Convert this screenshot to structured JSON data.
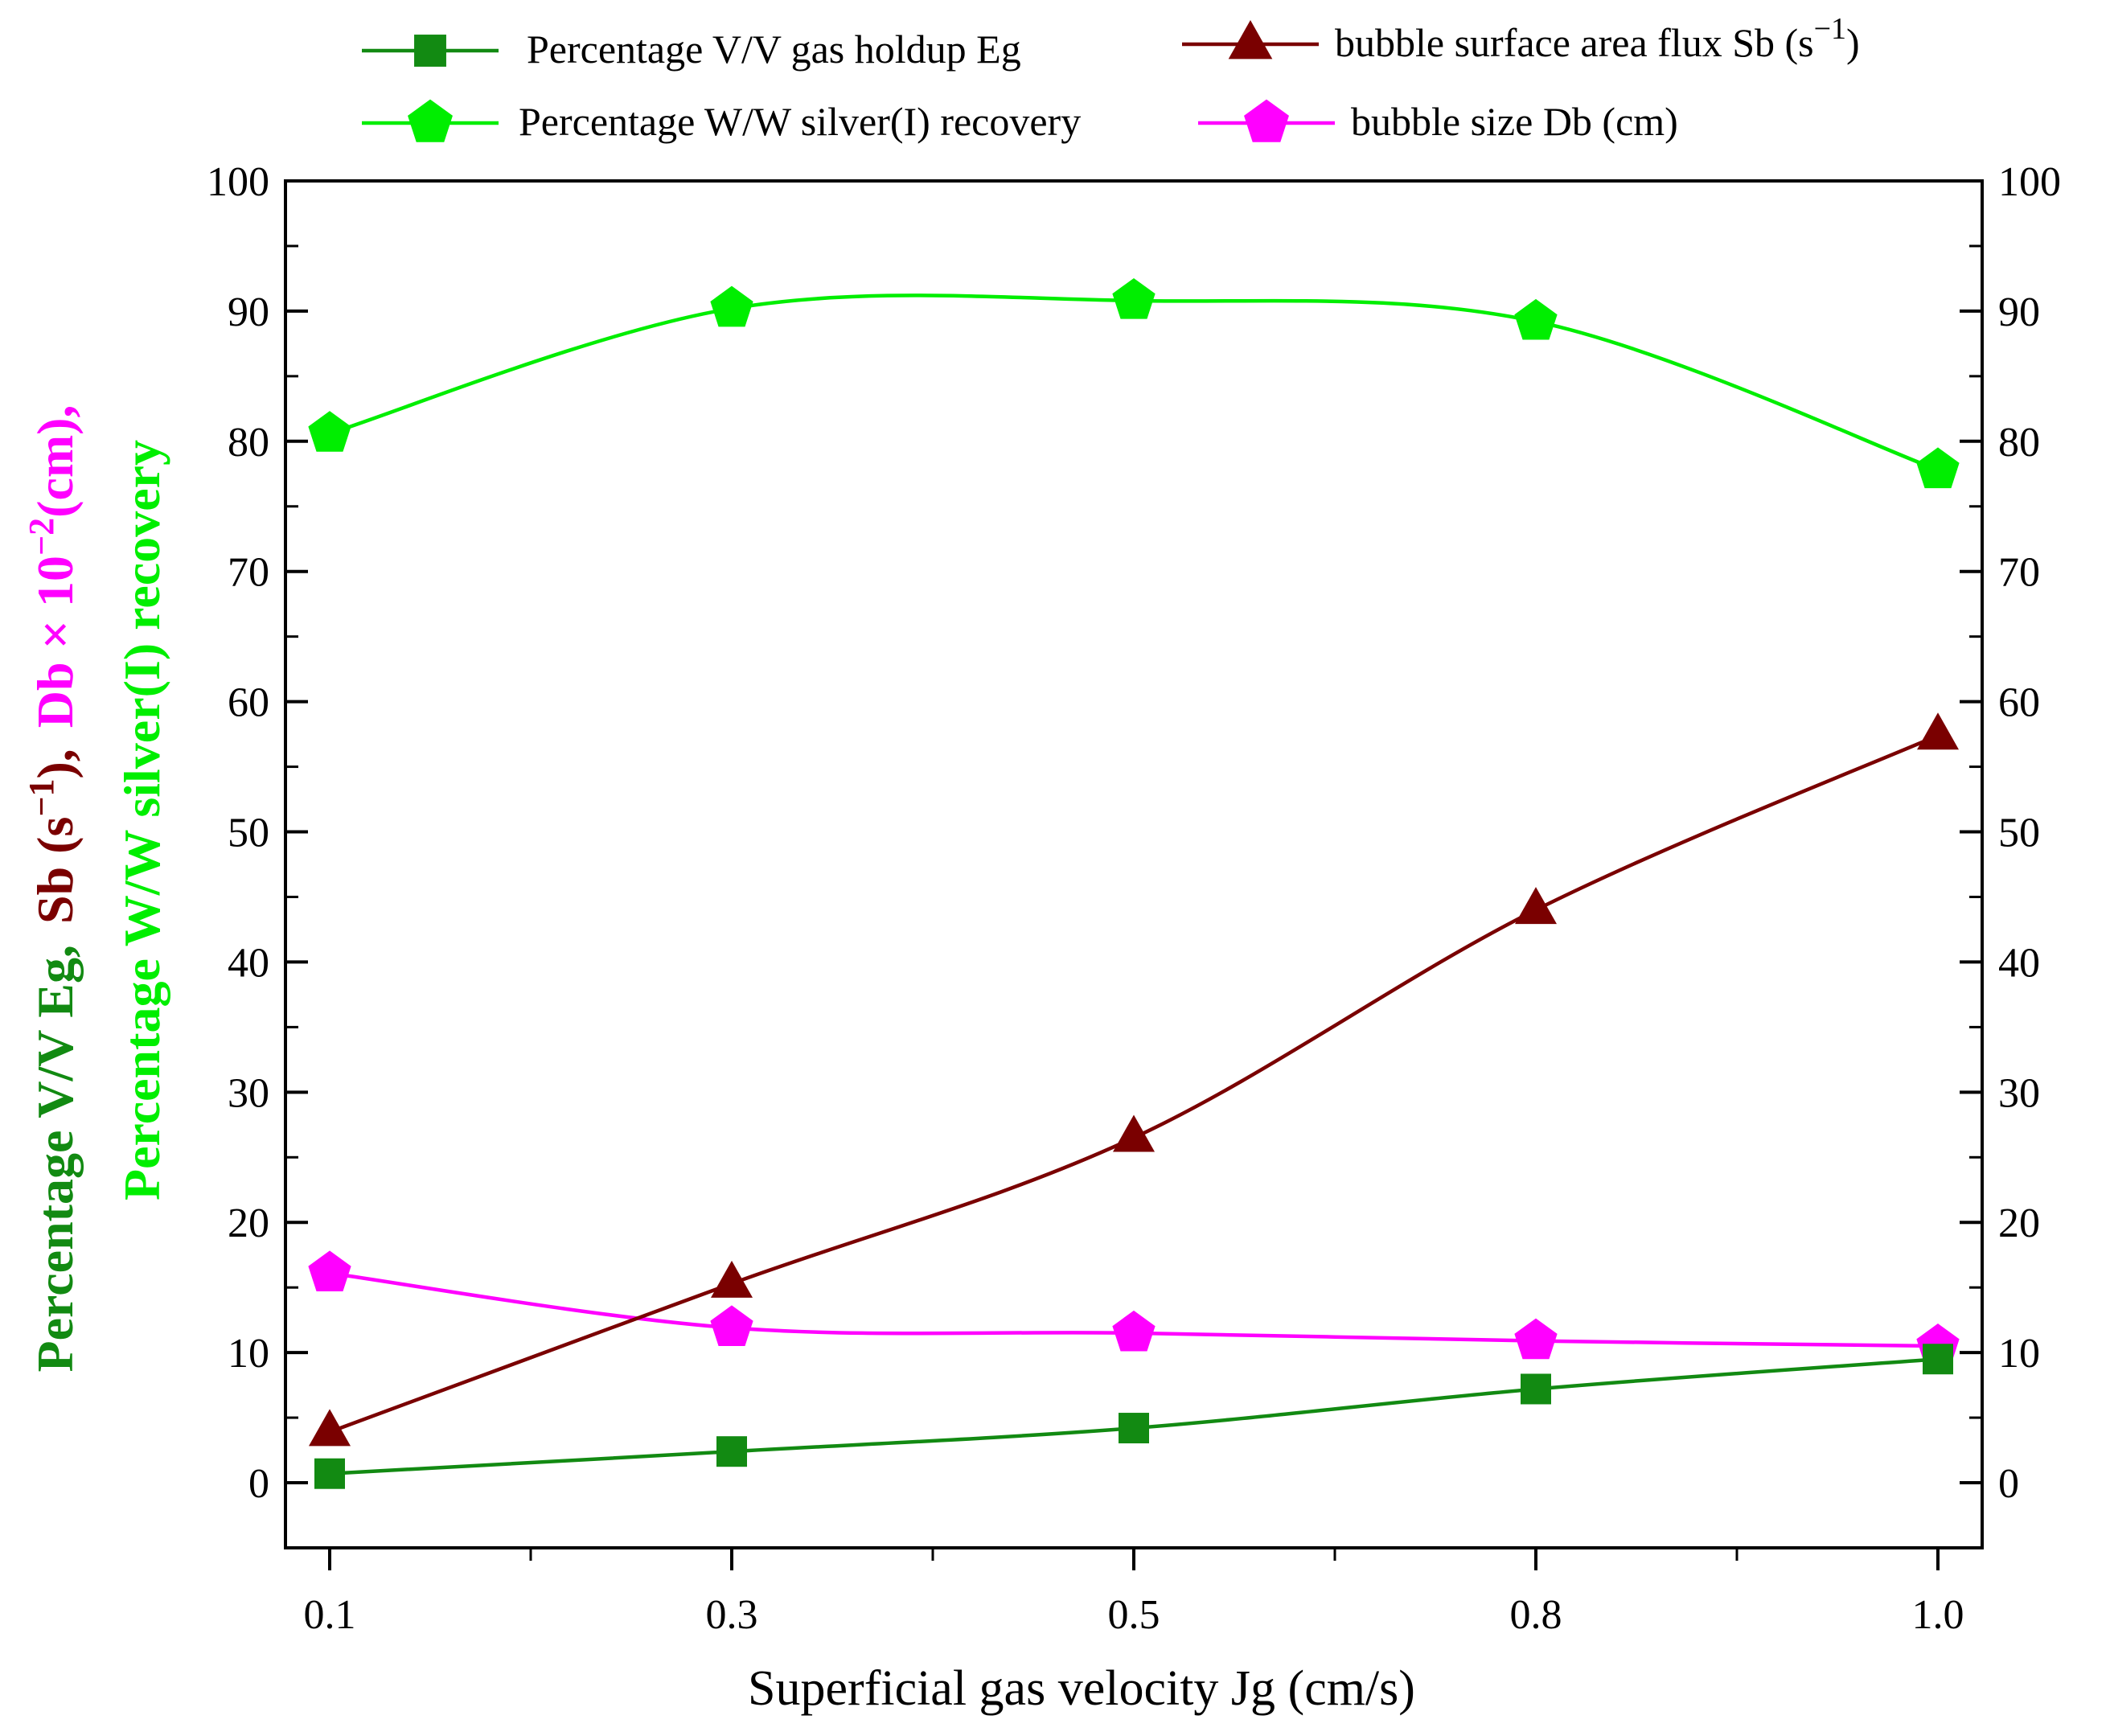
{
  "chart_data": {
    "type": "line",
    "title": "",
    "xlabel": "Superficial gas velocity Jg (cm/s)",
    "categories": [
      "0.1",
      "0.3",
      "0.5",
      "0.8",
      "1.0"
    ],
    "ylim": [
      -5,
      100
    ],
    "yticks": [
      0,
      10,
      20,
      30,
      40,
      50,
      60,
      70,
      80,
      90,
      100
    ],
    "y2ticks": [
      0,
      10,
      20,
      30,
      40,
      50,
      60,
      70,
      80,
      90,
      100
    ],
    "ylabel": {
      "line1": [
        {
          "text": "Percentage V/V Eg,",
          "color": "#128a12"
        },
        {
          "text": "Sb (s",
          "color": "#7a0000"
        },
        {
          "text": "−1",
          "color": "#7a0000"
        },
        {
          "text": "),",
          "color": "#7a0000"
        },
        {
          "text": "Db × 10",
          "color": "#ff00ff"
        },
        {
          "text": "−2",
          "color": "#ff00ff"
        },
        {
          "text": "(cm),",
          "color": "#ff00ff"
        }
      ],
      "line2": {
        "text": "Percentage W/W silver(I) recovery",
        "color": "#00ee00"
      }
    },
    "series": [
      {
        "name": "Percentage V/V gas holdup Eg",
        "color": "#128a12",
        "marker": "square",
        "values": [
          0.7,
          2.4,
          4.2,
          7.2,
          9.5
        ]
      },
      {
        "name": "bubble surface area flux Sb (s",
        "name_sup": "−1",
        "name_suffix": ")",
        "color": "#7a0000",
        "marker": "triangle",
        "values": [
          3.9,
          15.3,
          26.5,
          44.0,
          57.4
        ]
      },
      {
        "name": "Percentage W/W silver(I) recovery",
        "color": "#00ee00",
        "marker": "pentagon",
        "values": [
          80.6,
          90.2,
          90.8,
          89.2,
          77.8
        ]
      },
      {
        "name": "bubble size Db (cm)",
        "color": "#ff00ff",
        "marker": "pentagon",
        "values": [
          16.1,
          11.9,
          11.5,
          10.9,
          10.5
        ]
      }
    ]
  }
}
